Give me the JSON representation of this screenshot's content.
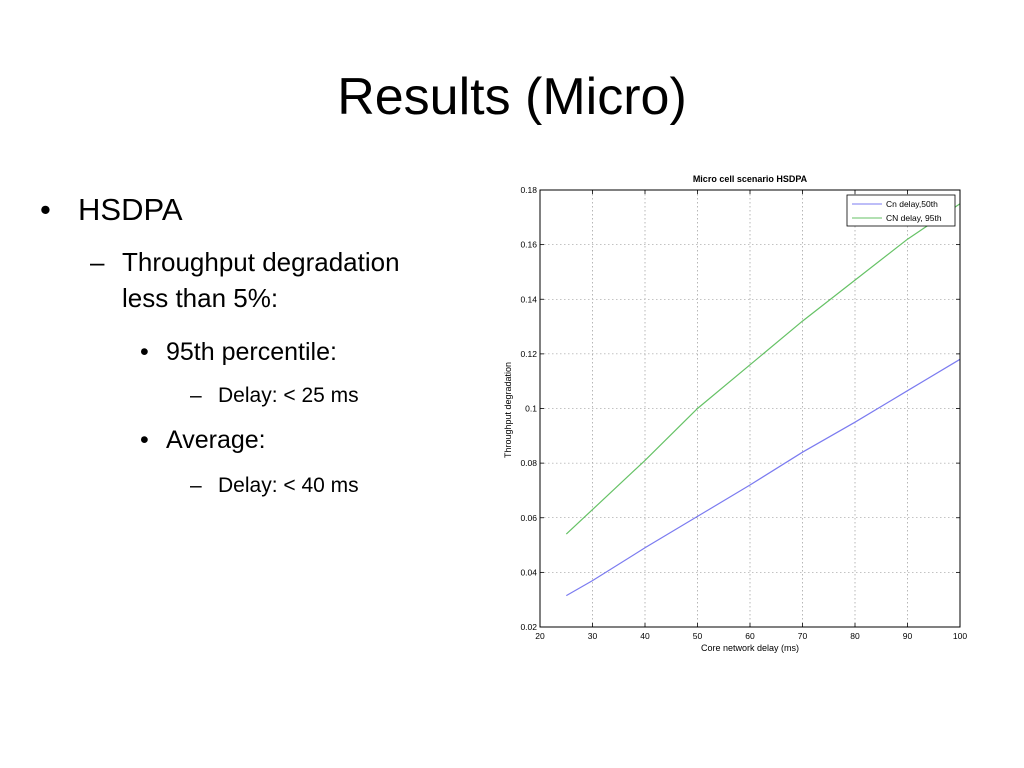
{
  "slide": {
    "title": "Results (Micro)",
    "bullets": [
      {
        "level": 1,
        "marker": "•",
        "text": "HSDPA"
      },
      {
        "level": 2,
        "marker": "–",
        "text": "Throughput degradation",
        "text2": "less than 5%:"
      },
      {
        "level": 3,
        "marker": "•",
        "text": "95th percentile:"
      },
      {
        "level": 4,
        "marker": "–",
        "text": "Delay:  < 25 ms"
      },
      {
        "level": 3,
        "marker": "•",
        "text": "Average:"
      },
      {
        "level": 4,
        "marker": "–",
        "text": "Delay: < 40 ms"
      }
    ]
  },
  "chart_data": {
    "type": "line",
    "title": "Micro cell scenario HSDPA",
    "xlabel": "Core network delay (ms)",
    "ylabel": "Throughput degradation",
    "xlim": [
      20,
      100
    ],
    "ylim": [
      0.02,
      0.18
    ],
    "xticks": [
      20,
      30,
      40,
      50,
      60,
      70,
      80,
      90,
      100
    ],
    "yticks": [
      0.02,
      0.04,
      0.06,
      0.08,
      0.1,
      0.12,
      0.14,
      0.16,
      0.18
    ],
    "xtick_labels": [
      "20",
      "30",
      "40",
      "50",
      "60",
      "70",
      "80",
      "90",
      "100"
    ],
    "ytick_labels": [
      "0.02",
      "0.04",
      "0.06",
      "0.08",
      "0.1",
      "0.12",
      "0.14",
      "0.16",
      "0.18"
    ],
    "grid": true,
    "legend_position": "top-right",
    "series": [
      {
        "name": "Cn delay,50th",
        "color": "#7b7bf0",
        "x": [
          25,
          30,
          40,
          50,
          60,
          70,
          80,
          90,
          100
        ],
        "y": [
          0.0315,
          0.037,
          0.049,
          0.0605,
          0.072,
          0.084,
          0.095,
          0.1065,
          0.118
        ]
      },
      {
        "name": "CN delay, 95th",
        "color": "#66c266",
        "x": [
          25,
          30,
          40,
          50,
          60,
          70,
          80,
          90,
          100
        ],
        "y": [
          0.054,
          0.063,
          0.081,
          0.1,
          0.116,
          0.132,
          0.147,
          0.162,
          0.175
        ]
      }
    ]
  }
}
